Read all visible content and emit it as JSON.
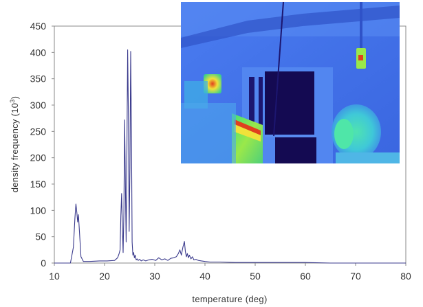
{
  "chart_data": {
    "type": "line",
    "title": "",
    "xlabel": "temperature (deg)",
    "ylabel_prefix": "density frequency (10",
    "ylabel_sup": "3",
    "ylabel_suffix": ")",
    "xlim": [
      10,
      80
    ],
    "ylim": [
      0,
      450
    ],
    "xticks": [
      10,
      20,
      30,
      40,
      50,
      60,
      70,
      80
    ],
    "yticks": [
      0,
      50,
      100,
      150,
      200,
      250,
      300,
      350,
      400,
      450
    ],
    "grid": false,
    "line_color": "#3a3a8c",
    "series": [
      {
        "x": [
          10,
          13.2,
          13.8,
          14.1,
          14.3,
          14.5,
          14.65,
          14.8,
          15.0,
          15.3,
          15.8,
          17,
          19,
          20.5,
          22,
          22.6,
          22.9,
          23.1,
          23.25,
          23.4,
          23.55,
          23.7,
          23.85,
          24.0,
          24.15,
          24.3,
          24.45,
          24.6,
          24.75,
          24.9,
          25.05,
          25.2,
          25.35,
          25.5,
          25.65,
          25.8,
          25.95,
          26.1,
          26.3,
          26.5,
          26.7,
          27.0,
          27.3,
          27.7,
          28.2,
          28.8,
          29.5,
          30.2,
          30.8,
          31.4,
          32.0,
          32.6,
          33.2,
          33.8,
          34.3,
          34.7,
          35.0,
          35.3,
          35.6,
          35.9,
          36.1,
          36.3,
          36.5,
          36.7,
          36.9,
          37.2,
          37.5,
          37.8,
          38.2,
          38.7,
          39.3,
          40.0,
          41,
          43,
          46,
          50,
          55,
          60,
          65,
          70,
          80
        ],
        "y": [
          0,
          0,
          30,
          85,
          112,
          95,
          78,
          92,
          60,
          12,
          3,
          3,
          4,
          4,
          5,
          10,
          18,
          25,
          90,
          132,
          70,
          20,
          95,
          272,
          150,
          40,
          210,
          405,
          280,
          60,
          180,
          402,
          250,
          40,
          15,
          20,
          10,
          15,
          6,
          8,
          5,
          7,
          4,
          6,
          4,
          6,
          7,
          5,
          10,
          6,
          8,
          5,
          9,
          10,
          12,
          18,
          25,
          15,
          30,
          41,
          22,
          12,
          18,
          10,
          15,
          8,
          12,
          6,
          7,
          5,
          4,
          3,
          2,
          2,
          1,
          1,
          1,
          1,
          0,
          0,
          0
        ]
      }
    ]
  },
  "inset_image": {
    "description_icon": "thermal-camera-image",
    "colors": {
      "background_blue": "#3f6fe6",
      "cold_dark": "#140a52",
      "warm_green": "#3fe08a",
      "hot_yellow": "#f0e23a",
      "hottest_red": "#e0401e",
      "cyan": "#52b8f0"
    }
  }
}
